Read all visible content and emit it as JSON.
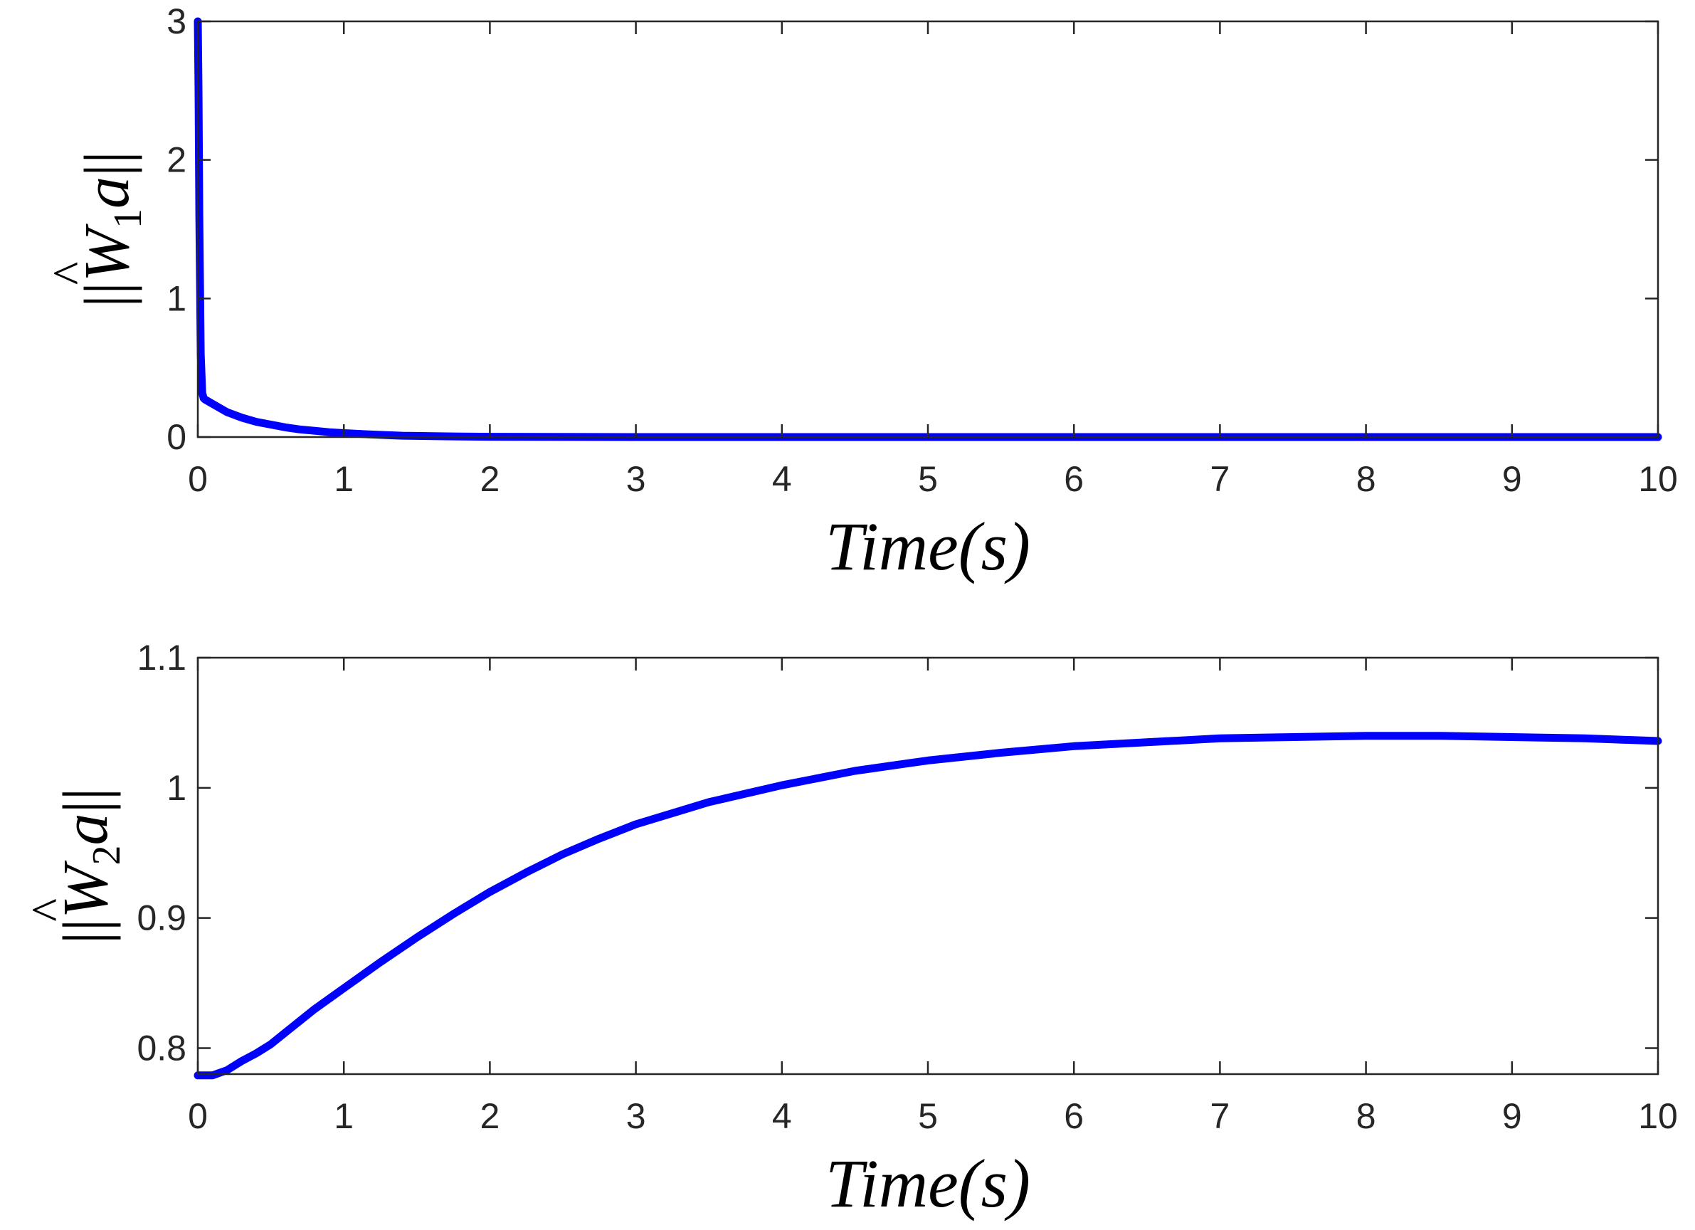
{
  "chart_data": [
    {
      "type": "line",
      "title": "",
      "xlabel": "Time(s)",
      "ylabel": {
        "open": "||",
        "symbol": "W",
        "hat": "^",
        "subscript": "1",
        "var": "a",
        "close": "||"
      },
      "xlim": [
        0,
        10
      ],
      "ylim": [
        0,
        3
      ],
      "xticks": [
        0,
        1,
        2,
        3,
        4,
        5,
        6,
        7,
        8,
        9,
        10
      ],
      "yticks": [
        0,
        1,
        2,
        3
      ],
      "ytick_labels": [
        "0",
        "1",
        "2",
        "3"
      ],
      "grid": false,
      "color": "#0000ff",
      "series": [
        {
          "x": [
            0,
            0.005,
            0.01,
            0.02,
            0.03,
            0.04,
            0.05,
            0.1,
            0.2,
            0.3,
            0.4,
            0.5,
            0.6,
            0.7,
            0.8,
            0.9,
            1.0,
            1.2,
            1.4,
            1.7,
            2.0,
            3,
            4,
            5,
            6,
            7,
            8,
            9,
            10
          ],
          "y": [
            3.0,
            2.5,
            1.6,
            0.6,
            0.32,
            0.28,
            0.27,
            0.24,
            0.18,
            0.14,
            0.11,
            0.09,
            0.07,
            0.055,
            0.045,
            0.035,
            0.028,
            0.018,
            0.01,
            0.005,
            0.002,
            0,
            0,
            0,
            0,
            0,
            0,
            0,
            0
          ]
        }
      ]
    },
    {
      "type": "line",
      "title": "",
      "xlabel": "Time(s)",
      "ylabel": {
        "open": "||",
        "symbol": "W",
        "hat": "^",
        "subscript": "2",
        "var": "a",
        "close": "||"
      },
      "xlim": [
        0,
        10
      ],
      "ylim": [
        0.78,
        1.1
      ],
      "xticks": [
        0,
        1,
        2,
        3,
        4,
        5,
        6,
        7,
        8,
        9,
        10
      ],
      "yticks": [
        0.8,
        0.9,
        1.0,
        1.1
      ],
      "ytick_labels": [
        "0.8",
        "0.9",
        "1",
        "1.1"
      ],
      "grid": false,
      "color": "#0000ff",
      "series": [
        {
          "x": [
            0,
            0.1,
            0.2,
            0.3,
            0.4,
            0.5,
            0.6,
            0.8,
            1.0,
            1.25,
            1.5,
            1.75,
            2.0,
            2.25,
            2.5,
            2.75,
            3.0,
            3.5,
            4.0,
            4.5,
            5.0,
            5.5,
            6.0,
            6.5,
            7.0,
            7.5,
            8.0,
            8.5,
            9.0,
            9.5,
            10.0
          ],
          "y": [
            0.779,
            0.779,
            0.783,
            0.79,
            0.796,
            0.803,
            0.812,
            0.83,
            0.846,
            0.866,
            0.885,
            0.903,
            0.92,
            0.935,
            0.949,
            0.961,
            0.972,
            0.989,
            1.002,
            1.013,
            1.021,
            1.027,
            1.032,
            1.035,
            1.038,
            1.039,
            1.04,
            1.04,
            1.039,
            1.038,
            1.036
          ]
        }
      ]
    }
  ]
}
